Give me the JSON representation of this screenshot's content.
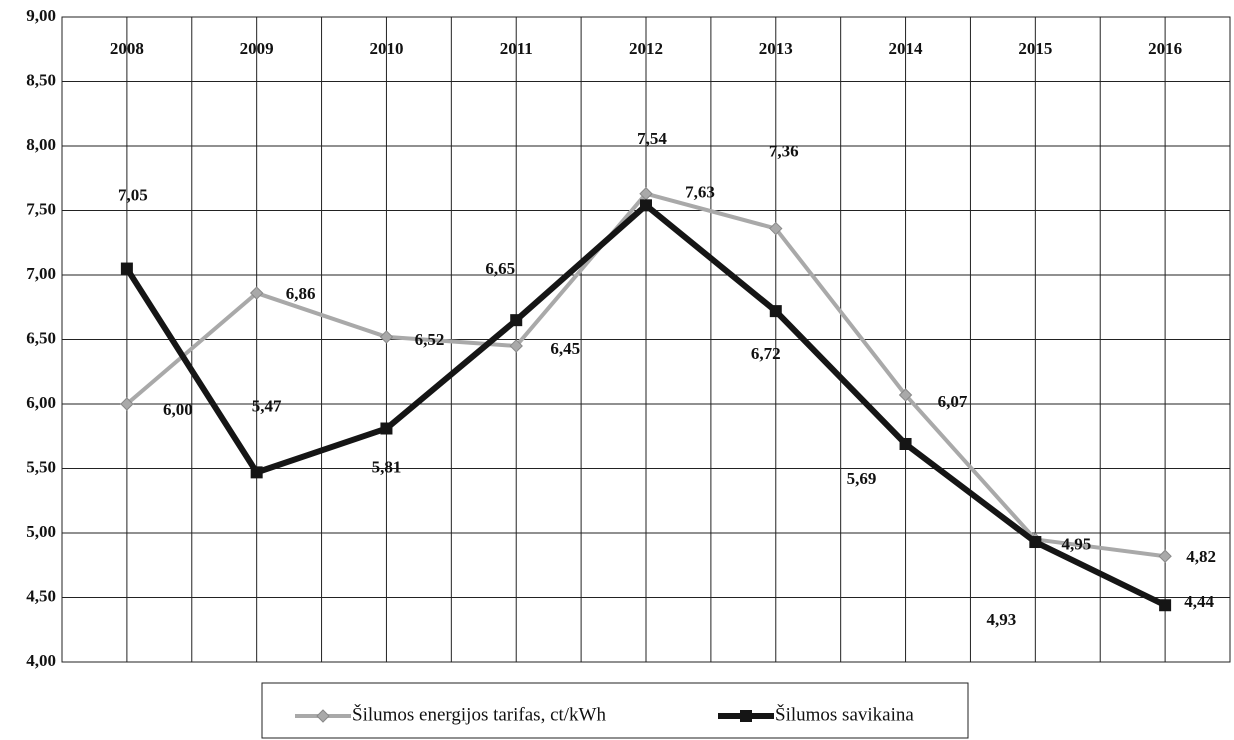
{
  "chart_data": {
    "type": "line",
    "categories": [
      "2008",
      "2009",
      "2010",
      "2011",
      "2012",
      "2013",
      "2014",
      "2015",
      "2016"
    ],
    "series": [
      {
        "name": "Šilumos energijos tarifas, ct/kWh",
        "color": "#a9a9a9",
        "marker": "diamond",
        "values": [
          6.0,
          6.86,
          6.52,
          6.45,
          7.63,
          7.36,
          6.07,
          4.95,
          4.82
        ],
        "value_labels": [
          "6,00",
          "6,86",
          "6,52",
          "6,45",
          "7,63",
          "7,36",
          "6,07",
          "4,95",
          "4,82"
        ]
      },
      {
        "name": "Šilumos savikaina",
        "color": "#151515",
        "marker": "square",
        "values": [
          7.05,
          5.47,
          5.81,
          6.65,
          7.54,
          6.72,
          5.69,
          4.93,
          4.44
        ],
        "value_labels": [
          "7,05",
          "5,47",
          "5,81",
          "6,65",
          "7,54",
          "6,72",
          "5,69",
          "4,93",
          "4,44"
        ]
      }
    ],
    "ylim": [
      4.0,
      9.0
    ],
    "yticks": [
      {
        "value": 4.0,
        "label": "4,00"
      },
      {
        "value": 4.5,
        "label": "4,50"
      },
      {
        "value": 5.0,
        "label": "5,00"
      },
      {
        "value": 5.5,
        "label": "5,50"
      },
      {
        "value": 6.0,
        "label": "6,00"
      },
      {
        "value": 6.5,
        "label": "6,50"
      },
      {
        "value": 7.0,
        "label": "7,00"
      },
      {
        "value": 7.5,
        "label": "7,50"
      },
      {
        "value": 8.0,
        "label": "8,00"
      },
      {
        "value": 8.5,
        "label": "8,50"
      },
      {
        "value": 9.0,
        "label": "9,00"
      }
    ],
    "grid": true,
    "legend": "bottom"
  }
}
